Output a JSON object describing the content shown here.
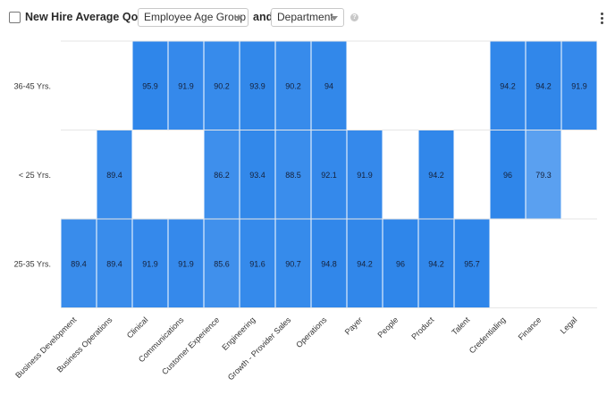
{
  "header": {
    "title": "New Hire Average QoH by",
    "group_by_value": "Employee Age Group",
    "and_label": "and",
    "second_value": "Department",
    "help_glyph": "?"
  },
  "icons": {
    "checkbox": "checkbox-icon",
    "dropdown": "chevron-down-icon",
    "help": "help-icon",
    "menu": "kebab-menu-icon"
  },
  "chart_data": {
    "type": "heatmap",
    "title": "New Hire Average QoH",
    "x_categories": [
      "Business Development",
      "Business Operations",
      "Clinical",
      "Communications",
      "Customer Experience",
      "Engineering",
      "Growth - Provider Sales",
      "Operations",
      "Payer",
      "People",
      "Product",
      "Talent",
      "Credentialing",
      "Finance",
      "Legal"
    ],
    "y_categories": [
      "36-45 Yrs.",
      "< 25 Yrs.",
      "25-35 Yrs."
    ],
    "values": [
      [
        null,
        null,
        95.9,
        91.9,
        90.2,
        93.9,
        90.2,
        94,
        null,
        null,
        null,
        null,
        94.2,
        94.2,
        91.9
      ],
      [
        null,
        89.4,
        null,
        null,
        86.2,
        93.4,
        88.5,
        92.1,
        91.9,
        null,
        94.2,
        null,
        96,
        79.3,
        null
      ],
      [
        89.4,
        89.4,
        91.9,
        91.9,
        85.6,
        91.6,
        90.7,
        94.8,
        94.2,
        96,
        94.2,
        95.7,
        null,
        null,
        null
      ]
    ],
    "color_low": "#5aa0f0",
    "color_high": "#2f86ea",
    "value_range": [
      79.3,
      96
    ],
    "grid": true,
    "legend": "none"
  }
}
